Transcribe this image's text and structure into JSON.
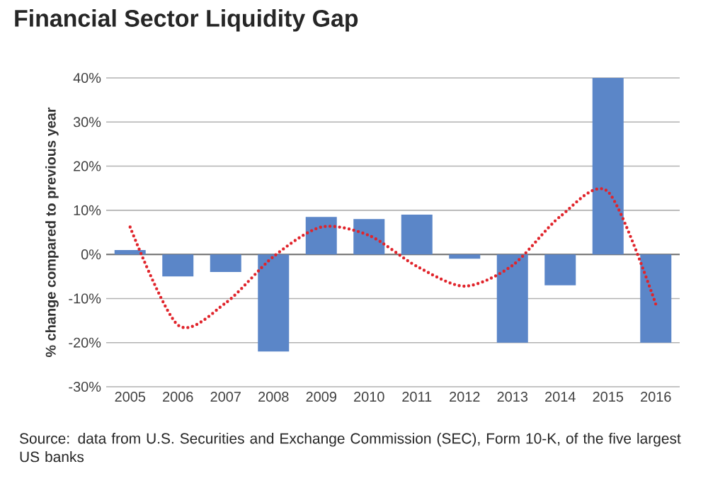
{
  "chart_data": {
    "type": "bar",
    "title": "Financial Sector Liquidity Gap",
    "ylabel": "% change compared to previous year",
    "categories": [
      "2005",
      "2006",
      "2007",
      "2008",
      "2009",
      "2010",
      "2011",
      "2012",
      "2013",
      "2014",
      "2015",
      "2016"
    ],
    "series": [
      {
        "color": "#5b86c8",
        "values": [
          1,
          -5,
          -4,
          -22,
          8.5,
          8,
          9,
          -1,
          -20,
          -7,
          40,
          -20
        ]
      },
      {
        "type": "line",
        "color": "#e0242b",
        "line_style": "dotted",
        "marker": "none",
        "values": [
          6.2,
          -16,
          -11,
          -0.5,
          6.2,
          4.3,
          -2.7,
          -7.2,
          -2.5,
          8.6,
          14.2,
          -11.3
        ]
      }
    ],
    "ylim": [
      -30,
      40
    ],
    "yticks": [
      {
        "value": -30,
        "label": "-30%"
      },
      {
        "value": -20,
        "label": "-20%"
      },
      {
        "value": -10,
        "label": "-10%"
      },
      {
        "value": 0,
        "label": "0%"
      },
      {
        "value": 10,
        "label": "10%"
      },
      {
        "value": 20,
        "label": "20%"
      },
      {
        "value": 30,
        "label": "30%"
      },
      {
        "value": 40,
        "label": "40%"
      }
    ],
    "grid": "y",
    "legend": false,
    "annotations": [
      "Source: data from U.S. Securities and Exchange Commission (SEC), Form 10-K, of the five largest US banks"
    ]
  }
}
